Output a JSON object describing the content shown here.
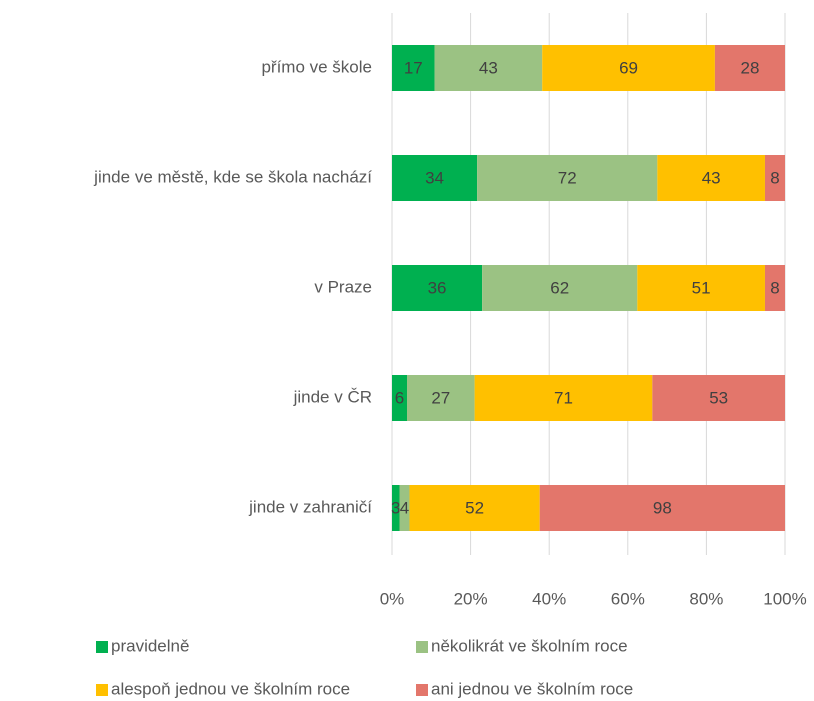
{
  "chart_data": {
    "type": "bar",
    "orientation": "horizontal",
    "stacking": "percent",
    "categories": [
      "přímo ve škole",
      "jinde ve městě, kde se škola nachází",
      "v Praze",
      "jinde v ČR",
      "jinde v zahraničí"
    ],
    "series": [
      {
        "name": "pravidelně",
        "color": "#00b050",
        "values": [
          17,
          34,
          36,
          6,
          3
        ]
      },
      {
        "name": "několikrát ve školním roce",
        "color": "#9bc283",
        "values": [
          43,
          72,
          62,
          27,
          4
        ]
      },
      {
        "name": "alespoň jednou ve školním roce",
        "color": "#ffc000",
        "values": [
          69,
          43,
          51,
          71,
          52
        ]
      },
      {
        "name": "ani jednou ve školním roce",
        "color": "#e3766b",
        "values": [
          28,
          8,
          8,
          53,
          98
        ]
      }
    ],
    "xlim": [
      0,
      100
    ],
    "xticks": [
      {
        "value": 0,
        "label": "0%"
      },
      {
        "value": 20,
        "label": "20%"
      },
      {
        "value": 40,
        "label": "40%"
      },
      {
        "value": 60,
        "label": "60%"
      },
      {
        "value": 80,
        "label": "80%"
      },
      {
        "value": 100,
        "label": "100%"
      }
    ],
    "grid": true,
    "legend": "bottom"
  }
}
